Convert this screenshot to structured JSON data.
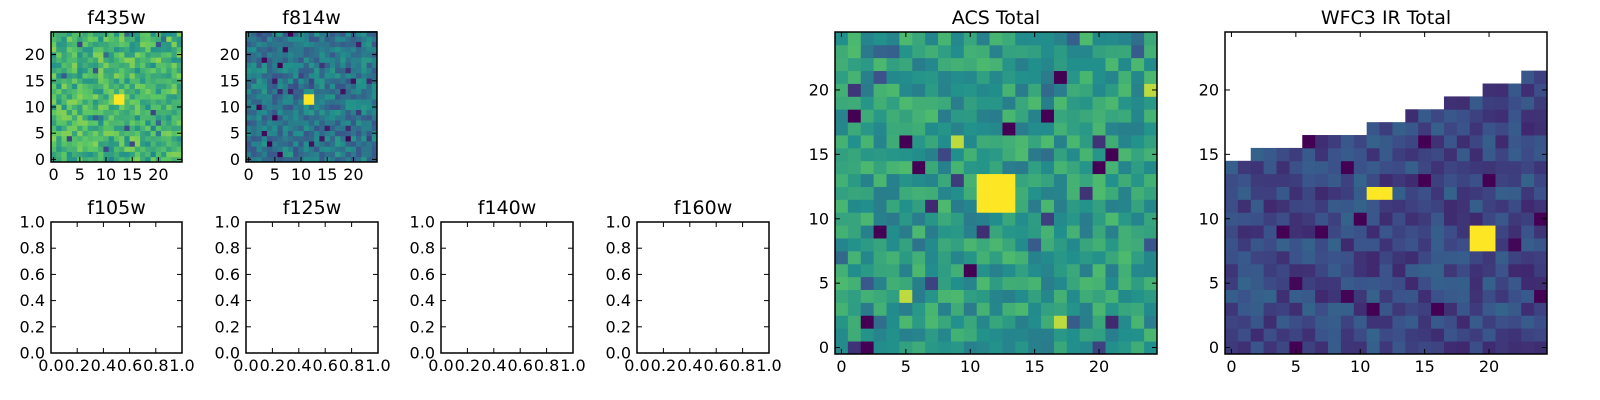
{
  "figure": {
    "colormap": [
      "#440154",
      "#3b528b",
      "#21908c",
      "#5dc863",
      "#fde725"
    ]
  },
  "chart_data": [
    {
      "type": "heatmap",
      "title": "f435w",
      "image_size": 25,
      "xticks": [
        "0",
        "5",
        "10",
        "15",
        "20"
      ],
      "yticks": [
        "0",
        "5",
        "10",
        "15",
        "20"
      ],
      "source_pixels": [
        {
          "x": 12,
          "y": 11,
          "w": 2,
          "h": 2,
          "value": 1.0
        }
      ],
      "background": {
        "mean": 0.66,
        "spread": 0.16,
        "seed": 11
      }
    },
    {
      "type": "heatmap",
      "title": "f814w",
      "image_size": 25,
      "xticks": [
        "0",
        "5",
        "10",
        "15",
        "20"
      ],
      "yticks": [
        "0",
        "5",
        "10",
        "15",
        "20"
      ],
      "source_pixels": [
        {
          "x": 11,
          "y": 11,
          "w": 2,
          "h": 2,
          "value": 1.0
        }
      ],
      "background": {
        "mean": 0.4,
        "spread": 0.14,
        "seed": 23
      }
    },
    {
      "type": "heatmap",
      "title": "f105w",
      "xticks": [
        "0.0",
        "0.2",
        "0.4",
        "0.6",
        "0.8",
        "1.0"
      ],
      "yticks": [
        "0.0",
        "0.2",
        "0.4",
        "0.6",
        "0.8",
        "1.0"
      ],
      "empty": true
    },
    {
      "type": "heatmap",
      "title": "f125w",
      "xticks": [
        "0.0",
        "0.2",
        "0.4",
        "0.6",
        "0.8",
        "1.0"
      ],
      "yticks": [
        "0.0",
        "0.2",
        "0.4",
        "0.6",
        "0.8",
        "1.0"
      ],
      "empty": true
    },
    {
      "type": "heatmap",
      "title": "f140w",
      "xticks": [
        "0.0",
        "0.2",
        "0.4",
        "0.6",
        "0.8",
        "1.0"
      ],
      "yticks": [
        "0.0",
        "0.2",
        "0.4",
        "0.6",
        "0.8",
        "1.0"
      ],
      "empty": true
    },
    {
      "type": "heatmap",
      "title": "f160w",
      "xticks": [
        "0.0",
        "0.2",
        "0.4",
        "0.6",
        "0.8",
        "1.0"
      ],
      "yticks": [
        "0.0",
        "0.2",
        "0.4",
        "0.6",
        "0.8",
        "1.0"
      ],
      "empty": true
    },
    {
      "type": "heatmap",
      "title": "ACS Total",
      "image_size": 25,
      "xticks": [
        "0",
        "5",
        "10",
        "15",
        "20"
      ],
      "yticks": [
        "0",
        "5",
        "10",
        "15",
        "20"
      ],
      "source_pixels": [
        {
          "x": 11,
          "y": 11,
          "w": 3,
          "h": 3,
          "value": 1.0
        }
      ],
      "background": {
        "mean": 0.55,
        "spread": 0.14,
        "seed": 37
      },
      "low_pixels": [
        [
          2,
          0
        ],
        [
          2,
          2
        ],
        [
          17,
          21
        ],
        [
          13,
          17
        ],
        [
          3,
          9
        ],
        [
          1,
          18
        ],
        [
          16,
          18
        ],
        [
          21,
          15
        ],
        [
          10,
          6
        ],
        [
          6,
          14
        ],
        [
          20,
          14
        ],
        [
          5,
          16
        ]
      ],
      "bright_pixels": [
        [
          17,
          2
        ],
        [
          24,
          20
        ],
        [
          5,
          4
        ],
        [
          9,
          16
        ]
      ]
    },
    {
      "type": "heatmap",
      "title": "WFC3 IR Total",
      "image_size": 25,
      "xticks": [
        "0",
        "5",
        "10",
        "15",
        "20"
      ],
      "yticks": [
        "0",
        "5",
        "10",
        "15",
        "20"
      ],
      "source_pixels": [
        {
          "x": 11,
          "y": 12,
          "w": 2,
          "h": 1,
          "value": 1.0
        },
        {
          "x": 19,
          "y": 8,
          "w": 2,
          "h": 2,
          "value": 1.0
        }
      ],
      "background": {
        "mean": 0.22,
        "spread": 0.1,
        "seed": 53
      },
      "coverage_top_row": [
        14,
        14,
        15,
        15,
        15,
        15,
        16,
        16,
        16,
        16,
        16,
        17,
        17,
        17,
        18,
        18,
        18,
        19,
        19,
        19,
        20,
        20,
        20,
        21,
        21
      ]
    }
  ]
}
